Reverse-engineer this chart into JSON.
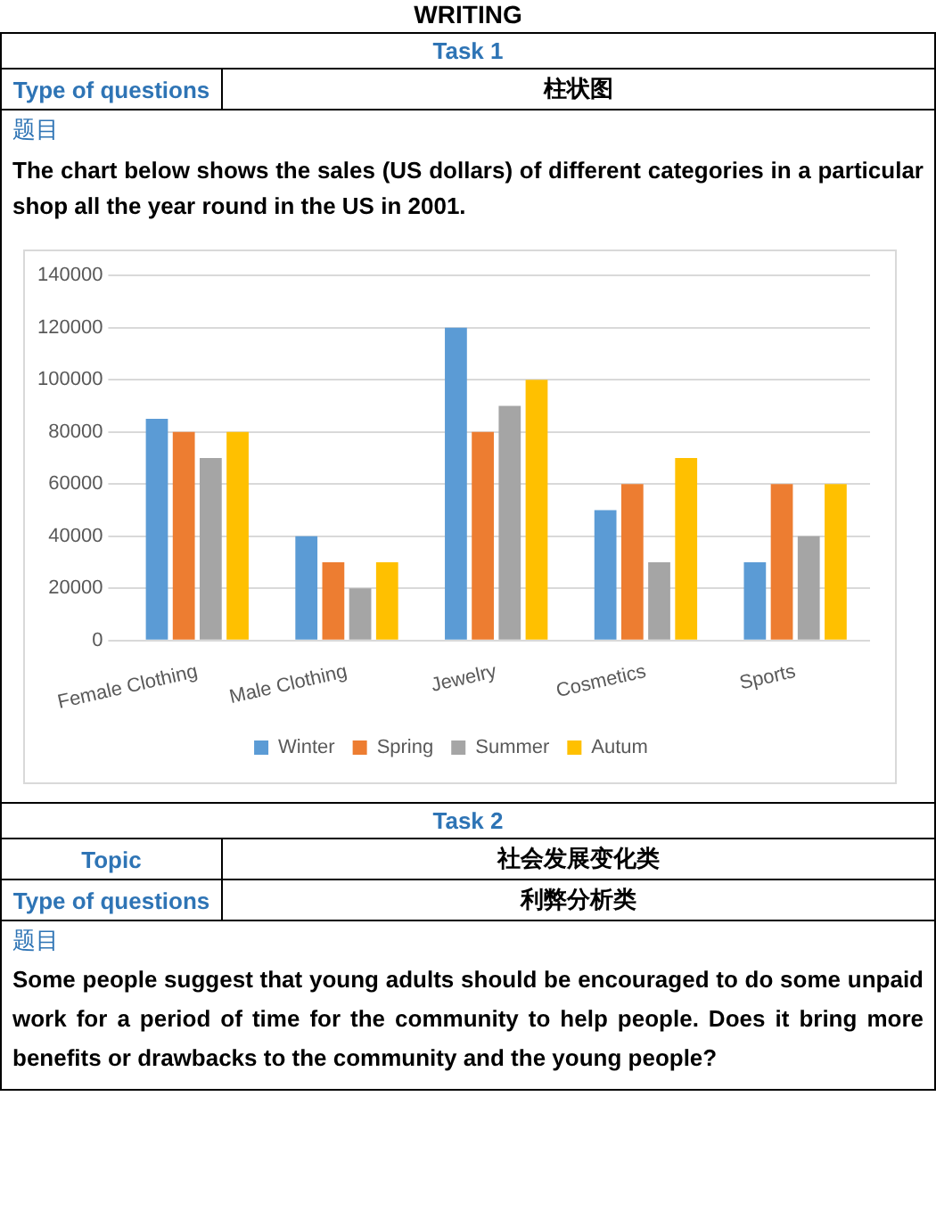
{
  "chart_data": {
    "type": "bar",
    "title": "WRITING",
    "annotations": [
      "Task 1",
      "Type of questions",
      "柱状图",
      "题目",
      "The chart below shows the sales (US dollars) of different categories in a particular shop all the year round in the US in 2001.",
      "Task 2",
      "Topic",
      "社会发展变化类",
      "Type of questions",
      "利弊分析类",
      "题目",
      "Some people suggest that young adults should be encouraged to do some unpaid work for a period of time for the community to help people. Does it bring more benefits or drawbacks to the community and the young people?"
    ],
    "categories": [
      "Female Clothing",
      "Male Clothing",
      "Jewelry",
      "Cosmetics",
      "Sports"
    ],
    "series": [
      {
        "name": "Winter",
        "color": "#5b9bd5",
        "values": [
          85000,
          40000,
          120000,
          50000,
          30000
        ]
      },
      {
        "name": "Spring",
        "color": "#ed7d31",
        "values": [
          80000,
          30000,
          80000,
          60000,
          60000
        ]
      },
      {
        "name": "Summer",
        "color": "#a5a5a5",
        "values": [
          70000,
          20000,
          90000,
          30000,
          40000
        ]
      },
      {
        "name": "Autum",
        "color": "#ffc000",
        "values": [
          80000,
          30000,
          100000,
          70000,
          60000
        ]
      }
    ],
    "ylim": [
      0,
      140000
    ],
    "yticks": [
      0,
      20000,
      40000,
      60000,
      80000,
      100000,
      120000,
      140000
    ],
    "grid": "y",
    "legend": "bottom"
  }
}
